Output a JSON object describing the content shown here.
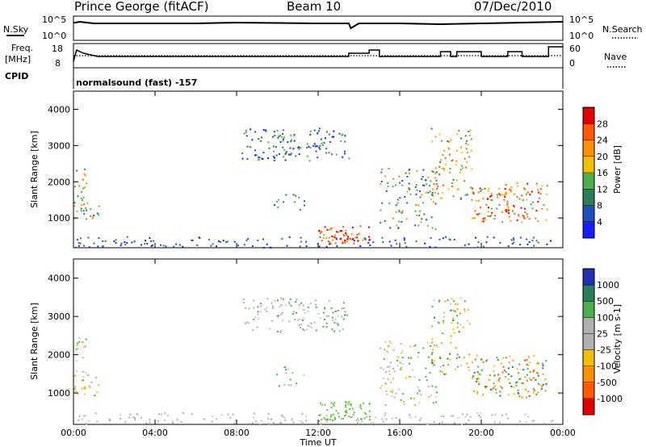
{
  "header": {
    "station": "Prince George (fitACF)",
    "beam": "Beam 10",
    "date": "07/Dec/2010"
  },
  "noise_panel": {
    "left_label": "N.Sky",
    "right_label": "N.Search",
    "left_ticks": [
      "10^5",
      "10^0"
    ],
    "right_ticks": [
      "10^5",
      "10^0"
    ]
  },
  "freq_panel": {
    "left_label_1": "Freq.",
    "left_label_2": "[MHz]",
    "right_label": "Nave",
    "left_ticks": [
      "18",
      "8"
    ],
    "right_ticks": [
      "60",
      "0"
    ],
    "cpid_label": "CPID"
  },
  "mode_text": "normalsound (fast) -157",
  "chart_data": [
    {
      "type": "heatmap",
      "name": "Power",
      "ylabel": "Slant Range [km]",
      "xlabel": "",
      "y_ticks": [
        1000,
        2000,
        3000,
        4000
      ],
      "ylim": [
        180,
        4500
      ],
      "colorbar_label": "Power [dB]",
      "colorbar_ticks": [
        "4",
        "8",
        "12",
        "16",
        "20",
        "24",
        "28"
      ],
      "colorbar_colors": [
        "#1a1aff",
        "#2050c0",
        "#2e7d5a",
        "#4caf50",
        "#f0c000",
        "#ff9000",
        "#ff5a00",
        "#e00000"
      ]
    },
    {
      "type": "heatmap",
      "name": "Velocity",
      "ylabel": "Slant Range [km]",
      "xlabel": "Time UT",
      "y_ticks": [
        1000,
        2000,
        3000,
        4000
      ],
      "ylim": [
        180,
        4500
      ],
      "colorbar_label": "Velocity [m s-1]",
      "colorbar_ticks": [
        "1000",
        "500",
        "100",
        "25",
        "-25",
        "-100",
        "-500",
        "-1000"
      ],
      "colorbar_colors": [
        "#2030b0",
        "#2e7d5a",
        "#4caf50",
        "#b0b0b0",
        "#b0b0b0",
        "#f0c000",
        "#ff9000",
        "#ff5a00",
        "#e00000"
      ]
    }
  ],
  "x_axis": {
    "label": "Time UT",
    "tick_labels": [
      "00:00",
      "04:00",
      "08:00",
      "12:00",
      "16:00",
      "20:00",
      "00:00"
    ],
    "tick_hours": [
      0,
      4,
      8,
      12,
      16,
      20,
      24
    ]
  }
}
